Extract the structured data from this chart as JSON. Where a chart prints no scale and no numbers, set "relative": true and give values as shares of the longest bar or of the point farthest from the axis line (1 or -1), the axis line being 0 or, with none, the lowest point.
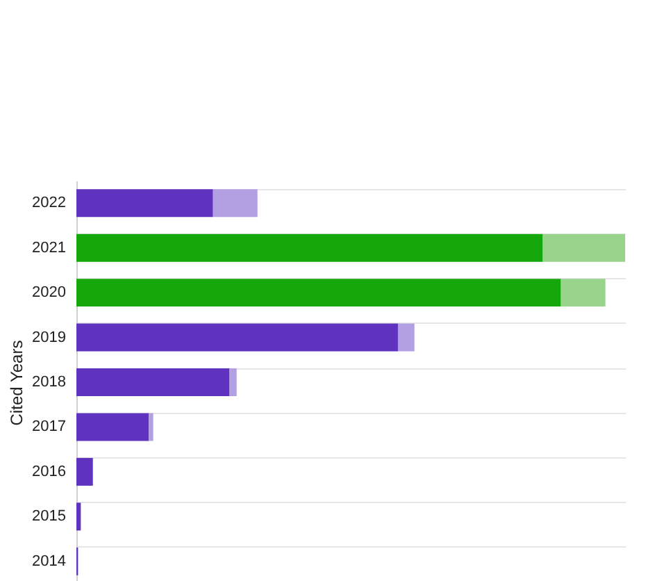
{
  "chart_data": {
    "type": "bar",
    "orientation": "horizontal",
    "stacked": true,
    "relative": true,
    "ylabel": "Cited Years",
    "grid": "y",
    "categories": [
      "2022",
      "2021",
      "2020",
      "2019",
      "2018",
      "2017",
      "2016",
      "2015",
      "2014"
    ],
    "series": [
      {
        "colors": [
          "#5f33c0",
          "#14a80c",
          "#14a80c",
          "#5f33c0",
          "#5f33c0",
          "#5f33c0",
          "#5f33c0",
          "#5f33c0",
          "#5f33c0"
        ],
        "values": [
          0.249,
          0.85,
          0.883,
          0.586,
          0.279,
          0.132,
          0.03,
          0.008,
          0.003
        ]
      },
      {
        "colors": [
          "#b3a0e3",
          "#98d48c",
          "#98d48c",
          "#b3a0e3",
          "#b3a0e3",
          "#b3a0e3",
          "#b3a0e3",
          "#b3a0e3",
          "#b3a0e3"
        ],
        "values": [
          0.081,
          0.15,
          0.081,
          0.03,
          0.013,
          0.008,
          0,
          0,
          0
        ]
      }
    ]
  }
}
